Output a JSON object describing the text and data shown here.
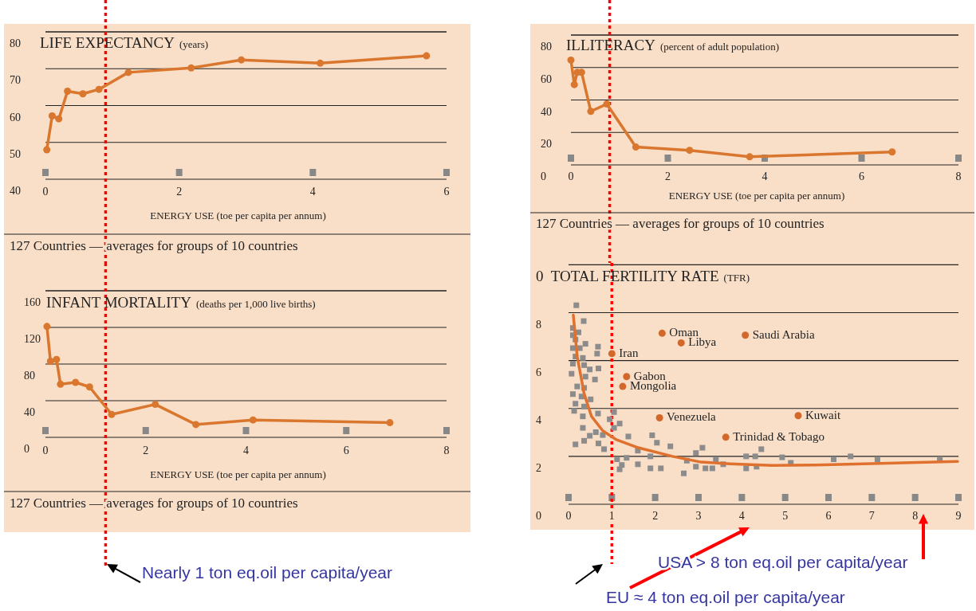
{
  "chart_data": [
    {
      "type": "line",
      "title": "LIFE EXPECTANCY",
      "subtitle": "(years)",
      "xlabel": "ENERGY USE (toe per capita per annum)",
      "xlim": [
        0,
        6
      ],
      "xticks": [
        0,
        2,
        4,
        6
      ],
      "ylim": [
        40,
        80
      ],
      "yticks": [
        40,
        50,
        60,
        70,
        80
      ],
      "grid": "y",
      "marker": "circle",
      "ref_lines": [
        {
          "axis": "x",
          "value": 0.9,
          "color": "#ff0000",
          "line_style": "dotted"
        }
      ],
      "annotations": [
        "127 Countries — averages for groups of 10 countries"
      ],
      "series": [
        {
          "color": "#d9772e",
          "x": [
            0.02,
            0.1,
            0.2,
            0.33,
            0.56,
            0.8,
            1.24,
            2.18,
            2.93,
            4.11,
            5.7
          ],
          "values": [
            48,
            57.2,
            56.4,
            63.9,
            63.2,
            64.4,
            69,
            70.2,
            72.4,
            71.5,
            73.5
          ]
        }
      ]
    },
    {
      "type": "line",
      "title": "INFANT MORTALITY",
      "subtitle": "(deaths per 1,000 live births)",
      "xlabel": "ENERGY USE (toe per capita per annum)",
      "xlim": [
        0,
        8
      ],
      "xticks": [
        0,
        2,
        4,
        6,
        8
      ],
      "ylim": [
        0,
        160
      ],
      "yticks": [
        0,
        40,
        80,
        120,
        160
      ],
      "grid": "y",
      "marker": "circle",
      "ref_lines": [
        {
          "axis": "x",
          "value": 1.2,
          "color": "#ff0000",
          "line_style": "dotted"
        }
      ],
      "annotations": [
        "127 Countries — averages for groups of 10 countries",
        "Nearly 1 ton eq.oil per capita/year"
      ],
      "series": [
        {
          "color": "#d9772e",
          "x": [
            0.03,
            0.1,
            0.22,
            0.3,
            0.6,
            0.88,
            1.32,
            2.19,
            3.0,
            4.14,
            6.87
          ],
          "values": [
            121,
            83,
            85,
            58,
            60,
            55,
            25,
            36,
            14,
            19,
            16
          ]
        }
      ]
    },
    {
      "type": "line",
      "title": "ILLITERACY",
      "subtitle": "(percent of adult population)",
      "xlabel": "ENERGY USE (toe per capita per annum)",
      "xlim": [
        0,
        8
      ],
      "xticks": [
        0,
        2,
        4,
        6,
        8
      ],
      "ylim": [
        0,
        80
      ],
      "yticks": [
        0,
        20,
        40,
        60,
        80
      ],
      "grid": "y",
      "marker": "circle",
      "ref_lines": [
        {
          "axis": "x",
          "value": 0.8,
          "color": "#ff0000",
          "line_style": "dotted"
        }
      ],
      "annotations": [
        "127 Countries — averages for groups of 10 countries"
      ],
      "series": [
        {
          "color": "#d9772e",
          "x": [
            0,
            0.07,
            0.13,
            0.22,
            0.41,
            0.74,
            1.34,
            2.45,
            3.69,
            6.63
          ],
          "values": [
            64.6,
            49.5,
            57,
            57,
            33,
            37.5,
            11,
            9,
            5,
            8
          ]
        }
      ]
    },
    {
      "type": "scatter",
      "title": "0  TOTAL FERTILITY RATE",
      "subtitle": "(TFR)",
      "xlim": [
        0,
        9
      ],
      "xticks": [
        0,
        1,
        2,
        3,
        4,
        5,
        6,
        7,
        8,
        9
      ],
      "ylim": [
        0,
        10
      ],
      "yticks": [
        0,
        2,
        4,
        6,
        8
      ],
      "grid": "y",
      "ref_lines": [
        {
          "axis": "x",
          "value": 1,
          "color": "#ff0000",
          "line_style": "dotted"
        }
      ],
      "annotations": [
        {
          "text": "Oman",
          "x": 2.16,
          "y": 7.14
        },
        {
          "text": "Libya",
          "x": 2.6,
          "y": 6.74
        },
        {
          "text": "Saudi Arabia",
          "x": 4.08,
          "y": 7.06
        },
        {
          "text": "Iran",
          "x": 1.0,
          "y": 6.29
        },
        {
          "text": "Gabon",
          "x": 1.34,
          "y": 5.33
        },
        {
          "text": "Mongolia",
          "x": 1.25,
          "y": 4.92
        },
        {
          "text": "Venezuela",
          "x": 2.1,
          "y": 3.61
        },
        {
          "text": "Kuwait",
          "x": 5.3,
          "y": 3.7
        },
        {
          "text": "Trinidad & Tobago",
          "x": 3.63,
          "y": 2.8
        },
        "USA > 8 ton eq.oil per capita/year",
        "EU ≈ 4 ton eq.oil per capita/year"
      ],
      "series": [
        {
          "marker": "square",
          "color": "#8c8c8c",
          "x": [
            0.18,
            0.35,
            0.1,
            0.23,
            0.1,
            0.16,
            0.39,
            0.1,
            0.26,
            0.68,
            0.66,
            0.16,
            0.33,
            0.1,
            0.36,
            0.49,
            0.69,
            0.07,
            0.39,
            0.61,
            0.2,
            0.36,
            0.1,
            0.3,
            0.51,
            0.16,
            0.36,
            0.13,
            0.68,
            1.05,
            0.33,
            0.95,
            1.18,
            0.33,
            0.63,
            1.05,
            0.49,
            0.79,
            1.38,
            1.93,
            0.16,
            0.36,
            0.69,
            0.82,
            2.04,
            2.35,
            3.09,
            1.6,
            1.12,
            1.34,
            1.23,
            1.6,
            1.89,
            1.18,
            1.89,
            2.13,
            2.66,
            2.73,
            2.94,
            2.94,
            3.16,
            3.32,
            3.4,
            3.57,
            4.1,
            4.31,
            4.45,
            4.1,
            4.34,
            4.93,
            5.13,
            6.12,
            6.51,
            7.13,
            8.57
          ],
          "values": [
            8.31,
            7.65,
            7.36,
            7.18,
            7.06,
            6.88,
            6.7,
            6.52,
            6.52,
            6.58,
            6.29,
            6.17,
            6.11,
            5.87,
            5.81,
            5.63,
            5.67,
            5.45,
            5.33,
            5.21,
            4.92,
            4.86,
            4.6,
            4.5,
            4.38,
            4.2,
            4.08,
            3.9,
            3.79,
            3.85,
            3.67,
            3.55,
            3.37,
            3.19,
            3.01,
            3.19,
            2.86,
            2.89,
            2.83,
            2.88,
            2.5,
            2.65,
            2.54,
            2.3,
            2.57,
            2.42,
            2.36,
            2.24,
            1.88,
            1.94,
            1.64,
            1.67,
            2.0,
            1.46,
            1.5,
            1.5,
            1.29,
            1.82,
            2.14,
            1.57,
            1.5,
            1.5,
            1.86,
            1.67,
            2.0,
            2.0,
            2.3,
            1.5,
            1.57,
            1.96,
            1.73,
            1.88,
            2.0,
            1.88,
            1.88
          ]
        },
        {
          "type": "line",
          "marker": "none",
          "color": "#e0702e",
          "x": [
            0.11,
            0.2,
            0.36,
            0.53,
            0.79,
            1.09,
            1.61,
            2.4,
            3.06,
            3.72,
            4.7,
            5.69,
            7.0,
            8.98
          ],
          "values": [
            7.9,
            6.17,
            4.62,
            3.67,
            3.07,
            2.71,
            2.36,
            2.0,
            1.76,
            1.69,
            1.62,
            1.64,
            1.7,
            1.79
          ]
        },
        {
          "marker": "circle",
          "color": "#d2692a",
          "x": [
            2.16,
            2.6,
            4.08,
            1.0,
            1.34,
            1.25,
            2.1,
            5.3,
            3.63
          ],
          "values": [
            7.14,
            6.74,
            7.06,
            6.29,
            5.33,
            4.92,
            3.61,
            3.7,
            2.8
          ]
        }
      ]
    }
  ]
}
